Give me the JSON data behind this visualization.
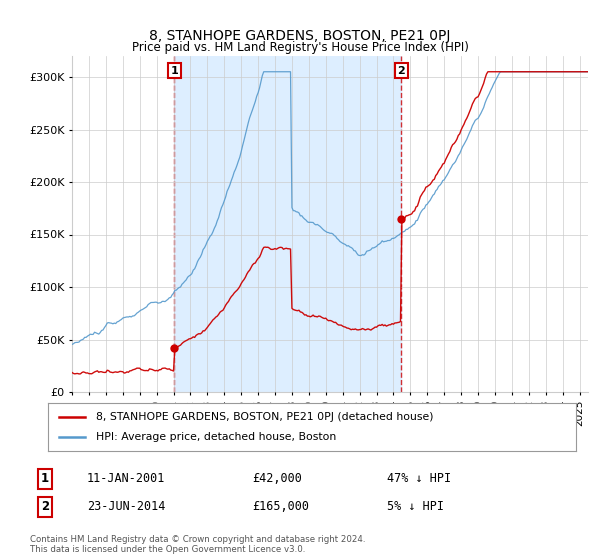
{
  "title": "8, STANHOPE GARDENS, BOSTON, PE21 0PJ",
  "subtitle": "Price paid vs. HM Land Registry's House Price Index (HPI)",
  "sale1_label": "11-JAN-2001",
  "sale1_price": 42000,
  "sale1_year": 2001.04,
  "sale1_hpi_diff": "47% ↓ HPI",
  "sale2_label": "23-JUN-2014",
  "sale2_price": 165000,
  "sale2_year": 2014.47,
  "sale2_hpi_diff": "5% ↓ HPI",
  "legend_line1": "8, STANHOPE GARDENS, BOSTON, PE21 0PJ (detached house)",
  "legend_line2": "HPI: Average price, detached house, Boston",
  "footer": "Contains HM Land Registry data © Crown copyright and database right 2024.\nThis data is licensed under the Open Government Licence v3.0.",
  "line_color_red": "#cc0000",
  "line_color_blue": "#5599cc",
  "fill_color": "#ddeeff",
  "ylim": [
    0,
    320000
  ],
  "yticks": [
    0,
    50000,
    100000,
    150000,
    200000,
    250000,
    300000
  ],
  "xmin": 1995.0,
  "xmax": 2025.5,
  "background": "#ffffff",
  "grid_color": "#cccccc"
}
